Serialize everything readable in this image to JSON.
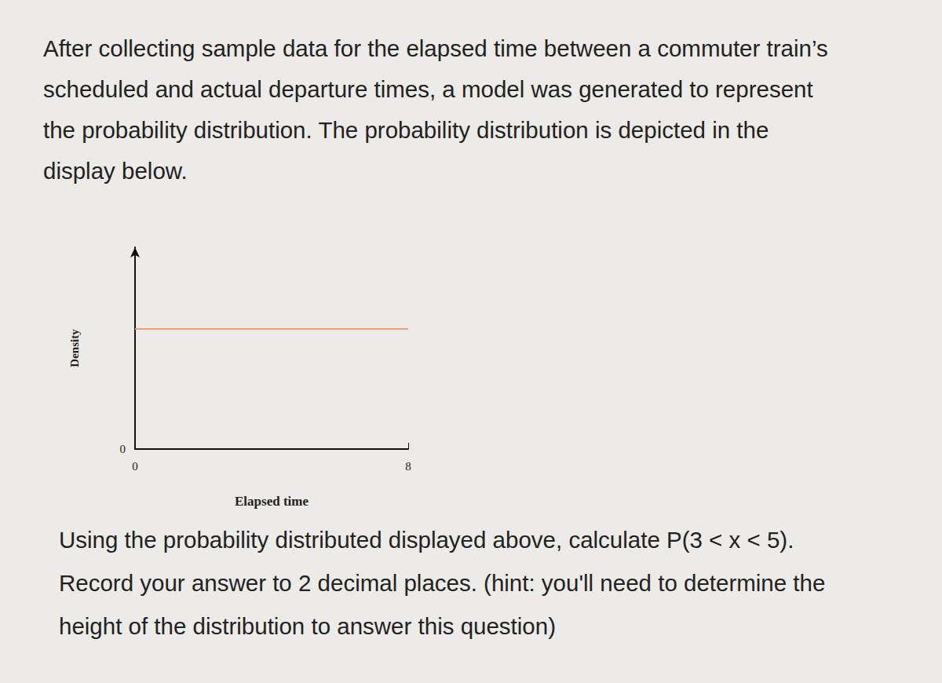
{
  "intro_lines": [
    "After collecting sample data for the elapsed time between a commuter train’s",
    "scheduled and actual departure times, a model was generated to represent",
    "the probability distribution. The probability distribution is depicted in the",
    "display below."
  ],
  "question_lines": [
    "Using the probability distributed displayed above, calculate P(3 < x < 5).",
    "Record your answer to 2 decimal places. (hint: you'll need to determine the",
    "height of the distribution to answer this question)"
  ],
  "chart_data": {
    "type": "line",
    "x_label": "Elapsed time",
    "y_label": "Density",
    "x": [
      0,
      8
    ],
    "values": [
      0.125,
      0.125
    ],
    "color": "#f0a070",
    "xlim": [
      0,
      8
    ],
    "xticks": [
      0,
      8
    ],
    "ylim": [
      0,
      0.21
    ],
    "yticks": [
      0
    ],
    "grid": false
  }
}
